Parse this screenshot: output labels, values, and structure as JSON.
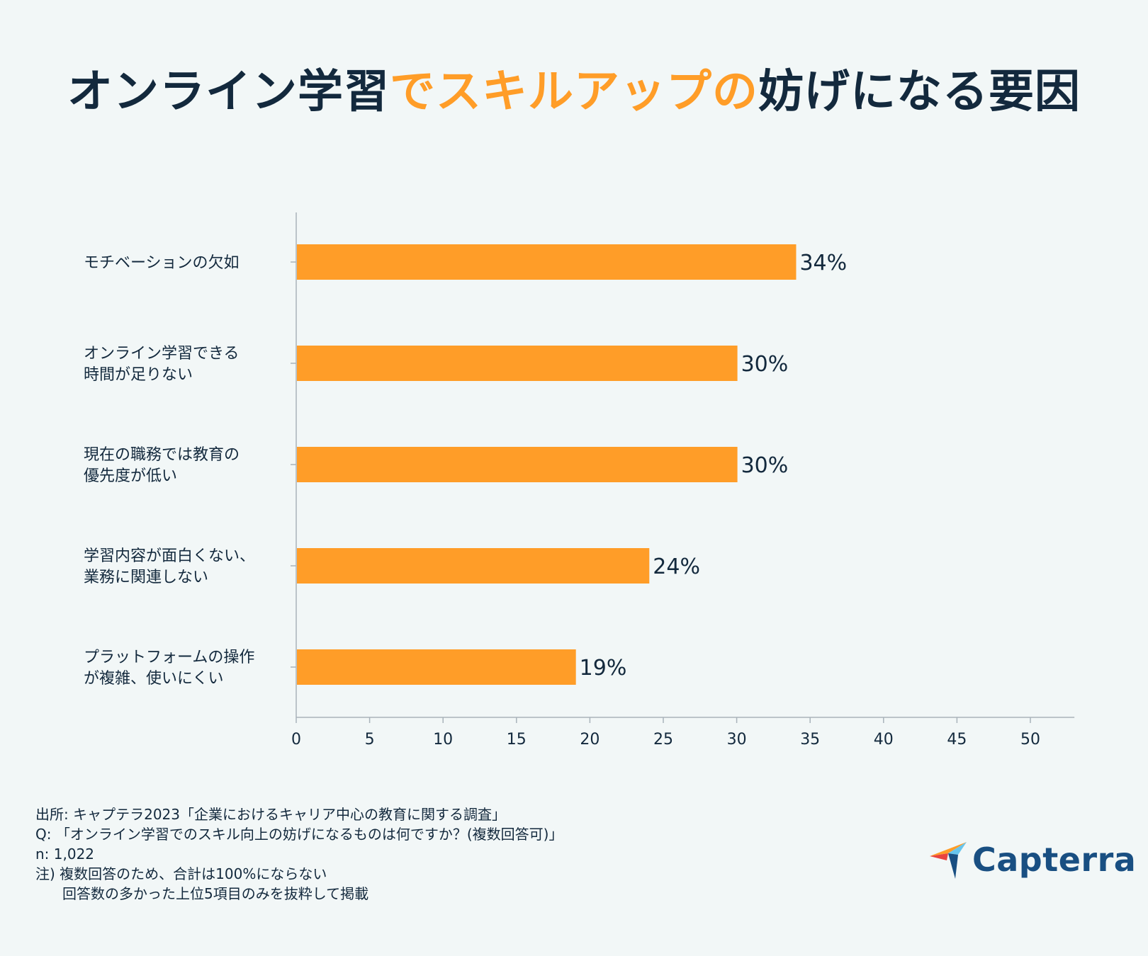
{
  "title": {
    "part1": "オンライン学習",
    "part2": "でスキルアップの",
    "part3": "妨げになる要因"
  },
  "colors": {
    "bar": "#ff9d28",
    "text": "#13293d",
    "accent": "#ff9d28",
    "axis": "#a9b3ba",
    "background": "#f2f7f7"
  },
  "chart_data": {
    "type": "bar",
    "orientation": "horizontal",
    "categories": [
      [
        "モチベーションの欠如"
      ],
      [
        "オンライン学習できる",
        "時間が足りない"
      ],
      [
        "現在の職務では教育の",
        "優先度が低い"
      ],
      [
        "学習内容が面白くない、",
        "業務に関連しない"
      ],
      [
        "プラットフォームの操作",
        "が複雑、使いにくい"
      ]
    ],
    "values": [
      34,
      30,
      30,
      24,
      19
    ],
    "value_labels": [
      "34%",
      "30%",
      "30%",
      "24%",
      "19%"
    ],
    "xlim": [
      0,
      53
    ],
    "xticks": [
      0,
      5,
      10,
      15,
      20,
      25,
      30,
      35,
      40,
      45,
      50
    ],
    "grid": false
  },
  "notes": {
    "source": "出所: キャプテラ2023「企業におけるキャリア中心の教育に関する調査」",
    "question": "Q: 「オンライン学習でのスキル向上の妨げになるものは何ですか？(複数回答可)」",
    "n": "n: 1,022",
    "note1": "注)  複数回答のため、合計は100%にならない",
    "note2": "回答数の多かった上位5項目のみを抜粋して掲載"
  },
  "logo": {
    "text": "Capterra",
    "icon": "capterra-arrow-icon"
  }
}
